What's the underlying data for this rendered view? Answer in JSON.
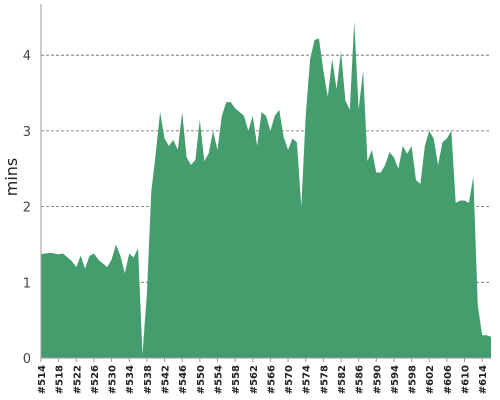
{
  "chart_data": {
    "type": "area",
    "title": "",
    "xlabel": "",
    "ylabel": "mins",
    "ylim": [
      0,
      4.65
    ],
    "yticks": [
      0,
      1,
      2,
      3,
      4
    ],
    "grid": true,
    "fill_color": "#449d6d",
    "grid_color": "#666666",
    "x": [
      "#514",
      "#515",
      "#516",
      "#517",
      "#518",
      "#519",
      "#520",
      "#521",
      "#522",
      "#523",
      "#524",
      "#525",
      "#526",
      "#527",
      "#528",
      "#529",
      "#530",
      "#531",
      "#532",
      "#533",
      "#534",
      "#535",
      "#536",
      "#537",
      "#538",
      "#539",
      "#540",
      "#541",
      "#542",
      "#543",
      "#544",
      "#545",
      "#546",
      "#547",
      "#548",
      "#549",
      "#550",
      "#551",
      "#552",
      "#553",
      "#554",
      "#555",
      "#556",
      "#557",
      "#558",
      "#559",
      "#560",
      "#561",
      "#562",
      "#563",
      "#564",
      "#565",
      "#566",
      "#567",
      "#568",
      "#569",
      "#570",
      "#571",
      "#572",
      "#573",
      "#574",
      "#575",
      "#576",
      "#577",
      "#578",
      "#579",
      "#580",
      "#581",
      "#582",
      "#583",
      "#584",
      "#585",
      "#586",
      "#587",
      "#588",
      "#589",
      "#590",
      "#591",
      "#592",
      "#593",
      "#594",
      "#595",
      "#596",
      "#597",
      "#598",
      "#599",
      "#600",
      "#601",
      "#602",
      "#603",
      "#604",
      "#605",
      "#606",
      "#607",
      "#608",
      "#609",
      "#610",
      "#611",
      "#612",
      "#613",
      "#614",
      "#615",
      "#616"
    ],
    "x_tick_labels": [
      "#514",
      "#518",
      "#522",
      "#526",
      "#530",
      "#534",
      "#538",
      "#542",
      "#546",
      "#550",
      "#554",
      "#558",
      "#562",
      "#566",
      "#570",
      "#574",
      "#578",
      "#582",
      "#586",
      "#590",
      "#594",
      "#598",
      "#602",
      "#606",
      "#610",
      "#614"
    ],
    "series": [
      {
        "values": [
          1.37,
          1.38,
          1.39,
          1.38,
          1.37,
          1.38,
          1.33,
          1.28,
          1.2,
          1.35,
          1.18,
          1.35,
          1.38,
          1.3,
          1.25,
          1.2,
          1.3,
          1.5,
          1.35,
          1.12,
          1.38,
          1.33,
          1.45,
          0.05,
          0.85,
          2.2,
          2.7,
          3.25,
          2.9,
          2.8,
          2.88,
          2.75,
          3.25,
          2.65,
          2.55,
          2.62,
          3.15,
          2.6,
          2.7,
          3.0,
          2.75,
          3.2,
          3.38,
          3.38,
          3.3,
          3.25,
          3.2,
          3.0,
          3.2,
          2.8,
          3.25,
          3.2,
          3.0,
          3.2,
          3.28,
          2.92,
          2.75,
          2.9,
          2.85,
          2.0,
          3.2,
          3.95,
          4.2,
          4.22,
          3.8,
          3.45,
          3.95,
          3.55,
          4.05,
          3.4,
          3.28,
          4.45,
          3.28,
          3.8,
          2.6,
          2.75,
          2.45,
          2.45,
          2.55,
          2.72,
          2.65,
          2.5,
          2.8,
          2.7,
          2.8,
          2.35,
          2.3,
          2.8,
          3.0,
          2.9,
          2.55,
          2.85,
          2.9,
          3.0,
          2.05,
          2.08,
          2.08,
          2.05,
          2.4,
          0.7,
          0.3,
          0.3,
          0.28
        ]
      }
    ]
  }
}
